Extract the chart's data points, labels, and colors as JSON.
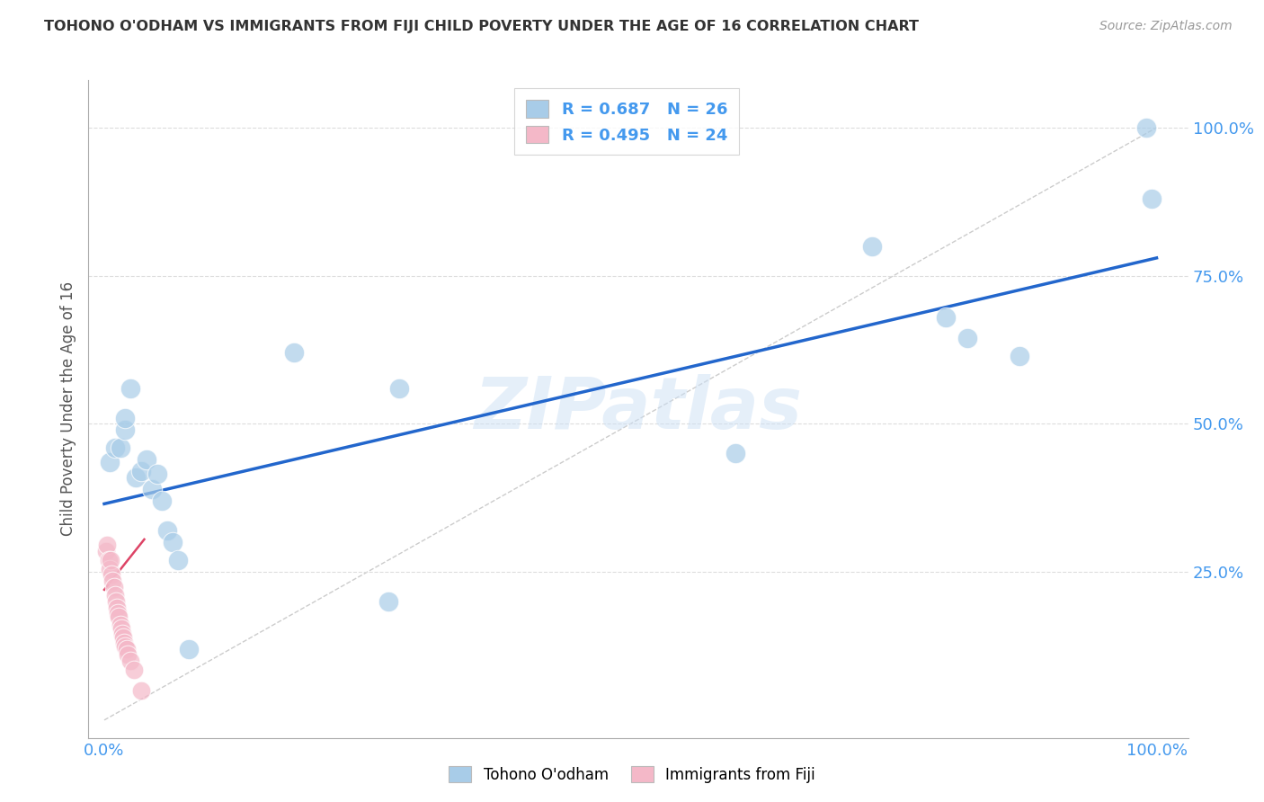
{
  "title": "TOHONO O'ODHAM VS IMMIGRANTS FROM FIJI CHILD POVERTY UNDER THE AGE OF 16 CORRELATION CHART",
  "source": "Source: ZipAtlas.com",
  "ylabel": "Child Poverty Under the Age of 16",
  "watermark": "ZIPatlas",
  "blue_color": "#a8cce8",
  "pink_color": "#f4b8c8",
  "line_blue": "#2266cc",
  "line_pink": "#dd4466",
  "axis_label_color": "#4499ee",
  "title_color": "#333333",
  "grid_color": "#dddddd",
  "blue_points": [
    [
      0.5,
      43.5
    ],
    [
      1.0,
      46.0
    ],
    [
      1.5,
      46.0
    ],
    [
      2.0,
      49.0
    ],
    [
      2.0,
      51.0
    ],
    [
      2.5,
      56.0
    ],
    [
      3.0,
      41.0
    ],
    [
      3.5,
      42.0
    ],
    [
      4.0,
      44.0
    ],
    [
      4.5,
      39.0
    ],
    [
      5.0,
      41.5
    ],
    [
      5.5,
      37.0
    ],
    [
      6.0,
      32.0
    ],
    [
      6.5,
      30.0
    ],
    [
      7.0,
      27.0
    ],
    [
      8.0,
      12.0
    ],
    [
      18.0,
      62.0
    ],
    [
      27.0,
      20.0
    ],
    [
      28.0,
      56.0
    ],
    [
      60.0,
      45.0
    ],
    [
      73.0,
      80.0
    ],
    [
      80.0,
      68.0
    ],
    [
      82.0,
      64.5
    ],
    [
      87.0,
      61.5
    ],
    [
      99.0,
      100.0
    ],
    [
      99.5,
      88.0
    ]
  ],
  "pink_points": [
    [
      0.2,
      28.5
    ],
    [
      0.3,
      29.5
    ],
    [
      0.4,
      27.0
    ],
    [
      0.5,
      25.5
    ],
    [
      0.6,
      27.0
    ],
    [
      0.7,
      24.5
    ],
    [
      0.8,
      23.5
    ],
    [
      0.9,
      22.5
    ],
    [
      1.0,
      21.0
    ],
    [
      1.1,
      20.0
    ],
    [
      1.2,
      19.0
    ],
    [
      1.3,
      18.0
    ],
    [
      1.4,
      17.5
    ],
    [
      1.5,
      16.0
    ],
    [
      1.6,
      15.5
    ],
    [
      1.7,
      14.5
    ],
    [
      1.8,
      14.0
    ],
    [
      1.9,
      13.0
    ],
    [
      2.0,
      12.5
    ],
    [
      2.1,
      12.0
    ],
    [
      2.2,
      11.0
    ],
    [
      2.5,
      10.0
    ],
    [
      2.8,
      8.5
    ],
    [
      3.5,
      5.0
    ]
  ],
  "blue_trendline_x": [
    0,
    100
  ],
  "blue_trendline_y": [
    36.5,
    78.0
  ],
  "pink_trendline_x": [
    0.0,
    3.8
  ],
  "pink_trendline_y": [
    22.0,
    30.5
  ],
  "xlim": [
    -1.5,
    103
  ],
  "ylim": [
    -3,
    108
  ],
  "xtick_vals": [
    0,
    50,
    100
  ],
  "xtick_labels": [
    "0.0%",
    "",
    "100.0%"
  ],
  "ytick_vals": [
    25,
    50,
    75,
    100
  ],
  "ytick_labels": [
    "25.0%",
    "50.0%",
    "75.0%",
    "100.0%"
  ],
  "diag_line_x": [
    0,
    100
  ],
  "diag_line_y": [
    0,
    100
  ]
}
